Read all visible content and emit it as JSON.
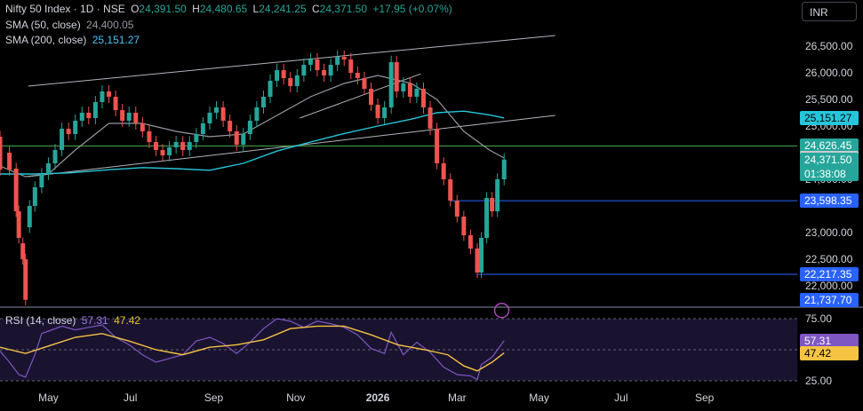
{
  "header": {
    "symbol": "Nifty 50 Index · 1D · NSE",
    "open_label": "O",
    "open": "24,391.50",
    "high_label": "H",
    "high": "24,480.65",
    "low_label": "L",
    "low": "24,241.25",
    "close_label": "C",
    "close": "24,371.50",
    "change": "+17.95 (+0.07%)",
    "sma50_label": "SMA (50, close)",
    "sma50_value": "24,400.05",
    "sma200_label": "SMA (200, close)",
    "sma200_value": "25,151.27",
    "currency": "INR"
  },
  "rsi_header": {
    "label": "RSI (14, close)",
    "rsi_value": "57.31",
    "ma_value": "47.42"
  },
  "colors": {
    "up": "#26a69a",
    "down": "#ef5350",
    "sma50": "#9598a1",
    "sma200": "#26c6da",
    "rsi": "#7e57c2",
    "rsi_ma": "#f6c343",
    "level": "#2962ff",
    "hline": "#4caf50"
  },
  "price_tags": [
    {
      "label": "25,151.27",
      "sub": "",
      "bg": "#26c6da",
      "fg": "#000000",
      "price": 25151.27
    },
    {
      "label": "24,626.45",
      "sub": "",
      "bg": "#26a69a",
      "fg": "#ffffff",
      "price": 24626.45
    },
    {
      "label": "24,400.05",
      "sub": "",
      "bg": "#c9cbd1",
      "fg": "#000000",
      "price": 24400.05
    },
    {
      "label": "24,371.50",
      "sub": "01:38:08",
      "bg": "#26a69a",
      "fg": "#ffffff",
      "price": 24371.5
    },
    {
      "label": "23,598.35",
      "sub": "",
      "bg": "#2962ff",
      "fg": "#ffffff",
      "price": 23598.35
    },
    {
      "label": "22,217.35",
      "sub": "",
      "bg": "#2962ff",
      "fg": "#ffffff",
      "price": 22217.35
    },
    {
      "label": "21,737.70",
      "sub": "",
      "bg": "#2962ff",
      "fg": "#ffffff",
      "price": 21737.7
    }
  ],
  "rsi_tags": [
    {
      "label": "57.31",
      "bg": "#7e57c2",
      "fg": "#ffffff",
      "value": 57.31
    },
    {
      "label": "47.42",
      "bg": "#f6c343",
      "fg": "#000000",
      "value": 47.42
    }
  ],
  "chart_data": {
    "type": "candlestick",
    "y_axis_ticks": [
      "26,500.00",
      "26,000.00",
      "25,500.00",
      "25,000.00",
      "24,000.00",
      "23,000.00",
      "22,500.00",
      "22,000.00"
    ],
    "y_tick_values": [
      26500,
      26000,
      25500,
      25000,
      24000,
      23000,
      22500,
      22000
    ],
    "price_range": [
      21700,
      26800
    ],
    "x_axis_ticks": [
      "May",
      "Jul",
      "Sep",
      "Nov",
      "2026",
      "Mar",
      "May",
      "Jul",
      "Sep"
    ],
    "x_tick_days": [
      3,
      64,
      126,
      187,
      248,
      307,
      368,
      429,
      491
    ],
    "day_range": [
      -33,
      560
    ],
    "level_lines": [
      24626.45,
      23598.35,
      22217.35
    ],
    "rsi_axis_ticks": [
      "75.00",
      "25.00"
    ],
    "rsi_tick_values": [
      75,
      25
    ],
    "rsi_range": [
      20,
      80
    ],
    "trendlines": [
      {
        "from": [
          -12,
          25750
        ],
        "to": [
          380,
          26700
        ]
      },
      {
        "from": [
          -12,
          24050
        ],
        "to": [
          380,
          25200
        ]
      },
      {
        "from": [
          190,
          25150
        ],
        "to": [
          280,
          25980
        ]
      }
    ],
    "candles": [
      [
        -33,
        24800,
        24180
      ],
      [
        -26,
        24500,
        24180
      ],
      [
        -21,
        24200,
        23400
      ],
      [
        -19,
        23400,
        22900
      ],
      [
        -16,
        22800,
        22500
      ],
      [
        -14,
        22500,
        21737.7
      ],
      [
        -11,
        23100,
        23500
      ],
      [
        -7,
        23500,
        23850
      ],
      [
        -2,
        23850,
        24100
      ],
      [
        3,
        24100,
        24300
      ],
      [
        8,
        24300,
        24550
      ],
      [
        13,
        24550,
        24950
      ],
      [
        18,
        24950,
        24850
      ],
      [
        23,
        24850,
        25100
      ],
      [
        28,
        25100,
        25250
      ],
      [
        33,
        25250,
        25150
      ],
      [
        38,
        25150,
        25450
      ],
      [
        43,
        25450,
        25650
      ],
      [
        48,
        25650,
        25550
      ],
      [
        53,
        25550,
        25300
      ],
      [
        58,
        25300,
        25100
      ],
      [
        63,
        25100,
        25250
      ],
      [
        68,
        25250,
        25050
      ],
      [
        73,
        25050,
        24900
      ],
      [
        78,
        24900,
        24700
      ],
      [
        83,
        24700,
        24550
      ],
      [
        88,
        24550,
        24450
      ],
      [
        93,
        24450,
        24600
      ],
      [
        98,
        24600,
        24700
      ],
      [
        103,
        24700,
        24550
      ],
      [
        108,
        24550,
        24700
      ],
      [
        113,
        24700,
        24850
      ],
      [
        118,
        24850,
        25050
      ],
      [
        123,
        25050,
        25250
      ],
      [
        128,
        25250,
        25350
      ],
      [
        133,
        25350,
        25100
      ],
      [
        138,
        25100,
        24900
      ],
      [
        143,
        24900,
        24650
      ],
      [
        148,
        24650,
        24850
      ],
      [
        153,
        24850,
        25100
      ],
      [
        158,
        25100,
        25350
      ],
      [
        163,
        25350,
        25550
      ],
      [
        168,
        25550,
        25850
      ],
      [
        173,
        25850,
        26050
      ],
      [
        178,
        26050,
        25900
      ],
      [
        183,
        25900,
        25750
      ],
      [
        188,
        25750,
        25950
      ],
      [
        193,
        25950,
        26150
      ],
      [
        198,
        26150,
        26250
      ],
      [
        203,
        26250,
        26050
      ],
      [
        208,
        26050,
        25950
      ],
      [
        213,
        25950,
        26150
      ],
      [
        218,
        26150,
        26300
      ],
      [
        223,
        26300,
        26250
      ],
      [
        228,
        26250,
        26000
      ],
      [
        233,
        26000,
        25900
      ],
      [
        238,
        25900,
        25700
      ],
      [
        243,
        25700,
        25400
      ],
      [
        248,
        25400,
        25150
      ],
      [
        253,
        25150,
        25350
      ],
      [
        258,
        25350,
        26200
      ],
      [
        262,
        26200,
        25650
      ],
      [
        267,
        25650,
        25800
      ],
      [
        272,
        25800,
        25550
      ],
      [
        277,
        25550,
        25700
      ],
      [
        282,
        25700,
        25350
      ],
      [
        287,
        25350,
        24950
      ],
      [
        292,
        24950,
        24300
      ],
      [
        297,
        24300,
        24000
      ],
      [
        302,
        24000,
        23600
      ],
      [
        307,
        23600,
        23300
      ],
      [
        312,
        23300,
        22950
      ],
      [
        317,
        22950,
        22700
      ],
      [
        322,
        22700,
        22250
      ],
      [
        325,
        22250,
        22900
      ],
      [
        329,
        22900,
        23650
      ],
      [
        333,
        23650,
        23400
      ],
      [
        337,
        23400,
        24000
      ],
      [
        342,
        24000,
        24371.5
      ]
    ],
    "sma50": [
      [
        -33,
        24250
      ],
      [
        -14,
        24050
      ],
      [
        3,
        24100
      ],
      [
        23,
        24550
      ],
      [
        48,
        25050
      ],
      [
        73,
        25050
      ],
      [
        98,
        24900
      ],
      [
        123,
        24800
      ],
      [
        148,
        24850
      ],
      [
        173,
        25200
      ],
      [
        198,
        25550
      ],
      [
        223,
        25800
      ],
      [
        248,
        25950
      ],
      [
        273,
        25800
      ],
      [
        292,
        25500
      ],
      [
        312,
        24900
      ],
      [
        331,
        24550
      ],
      [
        342,
        24400.05
      ]
    ],
    "sma200": [
      [
        -33,
        24100
      ],
      [
        -7,
        24100
      ],
      [
        18,
        24120
      ],
      [
        48,
        24180
      ],
      [
        73,
        24220
      ],
      [
        98,
        24200
      ],
      [
        123,
        24170
      ],
      [
        148,
        24300
      ],
      [
        173,
        24530
      ],
      [
        198,
        24700
      ],
      [
        223,
        24860
      ],
      [
        248,
        25000
      ],
      [
        273,
        25130
      ],
      [
        292,
        25250
      ],
      [
        312,
        25280
      ],
      [
        331,
        25210
      ],
      [
        342,
        25151.27
      ]
    ],
    "rsi": [
      [
        -33,
        49
      ],
      [
        -26,
        40
      ],
      [
        -19,
        30
      ],
      [
        -14,
        28
      ],
      [
        -7,
        46
      ],
      [
        -2,
        63
      ],
      [
        3,
        65
      ],
      [
        13,
        69
      ],
      [
        23,
        66
      ],
      [
        33,
        68
      ],
      [
        43,
        70
      ],
      [
        53,
        60
      ],
      [
        63,
        54
      ],
      [
        73,
        46
      ],
      [
        83,
        40
      ],
      [
        93,
        43
      ],
      [
        103,
        46
      ],
      [
        113,
        57
      ],
      [
        123,
        60
      ],
      [
        133,
        55
      ],
      [
        143,
        47
      ],
      [
        153,
        56
      ],
      [
        163,
        67
      ],
      [
        173,
        75
      ],
      [
        183,
        73
      ],
      [
        193,
        68
      ],
      [
        203,
        73
      ],
      [
        213,
        71
      ],
      [
        223,
        68
      ],
      [
        233,
        62
      ],
      [
        243,
        51
      ],
      [
        253,
        47
      ],
      [
        258,
        64
      ],
      [
        267,
        46
      ],
      [
        277,
        56
      ],
      [
        287,
        48
      ],
      [
        297,
        36
      ],
      [
        307,
        30
      ],
      [
        317,
        29
      ],
      [
        322,
        26
      ],
      [
        325,
        38
      ],
      [
        333,
        44
      ],
      [
        342,
        57.31
      ]
    ],
    "rsi_ma": [
      [
        -33,
        52
      ],
      [
        -14,
        47
      ],
      [
        3,
        53
      ],
      [
        23,
        60
      ],
      [
        43,
        63
      ],
      [
        63,
        57
      ],
      [
        83,
        50
      ],
      [
        103,
        46
      ],
      [
        123,
        52
      ],
      [
        143,
        54
      ],
      [
        163,
        58
      ],
      [
        183,
        67
      ],
      [
        203,
        69
      ],
      [
        223,
        69
      ],
      [
        243,
        62
      ],
      [
        263,
        54
      ],
      [
        283,
        50
      ],
      [
        300,
        46
      ],
      [
        312,
        37
      ],
      [
        322,
        33
      ],
      [
        333,
        40
      ],
      [
        342,
        47.42
      ]
    ]
  }
}
